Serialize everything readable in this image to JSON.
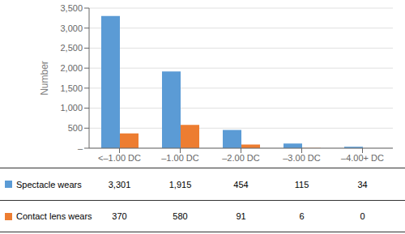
{
  "chart_data": {
    "type": "bar",
    "ylabel": "Number",
    "categories": [
      "<–1.00 DC",
      "–1.00 DC",
      "–2.00 DC",
      "–3.00 DC",
      "–4.00+ DC"
    ],
    "series": [
      {
        "name": "Spectacle wears",
        "color": "#5b9bd5",
        "values": [
          3301,
          1915,
          454,
          115,
          34
        ],
        "value_labels": [
          "3,301",
          "1,915",
          "454",
          "115",
          "34"
        ]
      },
      {
        "name": "Contact lens wears",
        "color": "#ed7d31",
        "values": [
          370,
          580,
          91,
          6,
          0
        ],
        "value_labels": [
          "370",
          "580",
          "91",
          "6",
          "0"
        ]
      }
    ],
    "ylim": [
      0,
      3500
    ],
    "yticks": [
      {
        "value": 0,
        "label": "–"
      },
      500,
      {
        "value": 1000,
        "label": "1,000"
      },
      {
        "value": 1500,
        "label": "1,500"
      },
      {
        "value": 2000,
        "label": "2,000"
      },
      {
        "value": 2500,
        "label": "2,500"
      },
      {
        "value": 3000,
        "label": "3,000"
      },
      {
        "value": 3500,
        "label": "3,500"
      }
    ],
    "grid": true
  }
}
